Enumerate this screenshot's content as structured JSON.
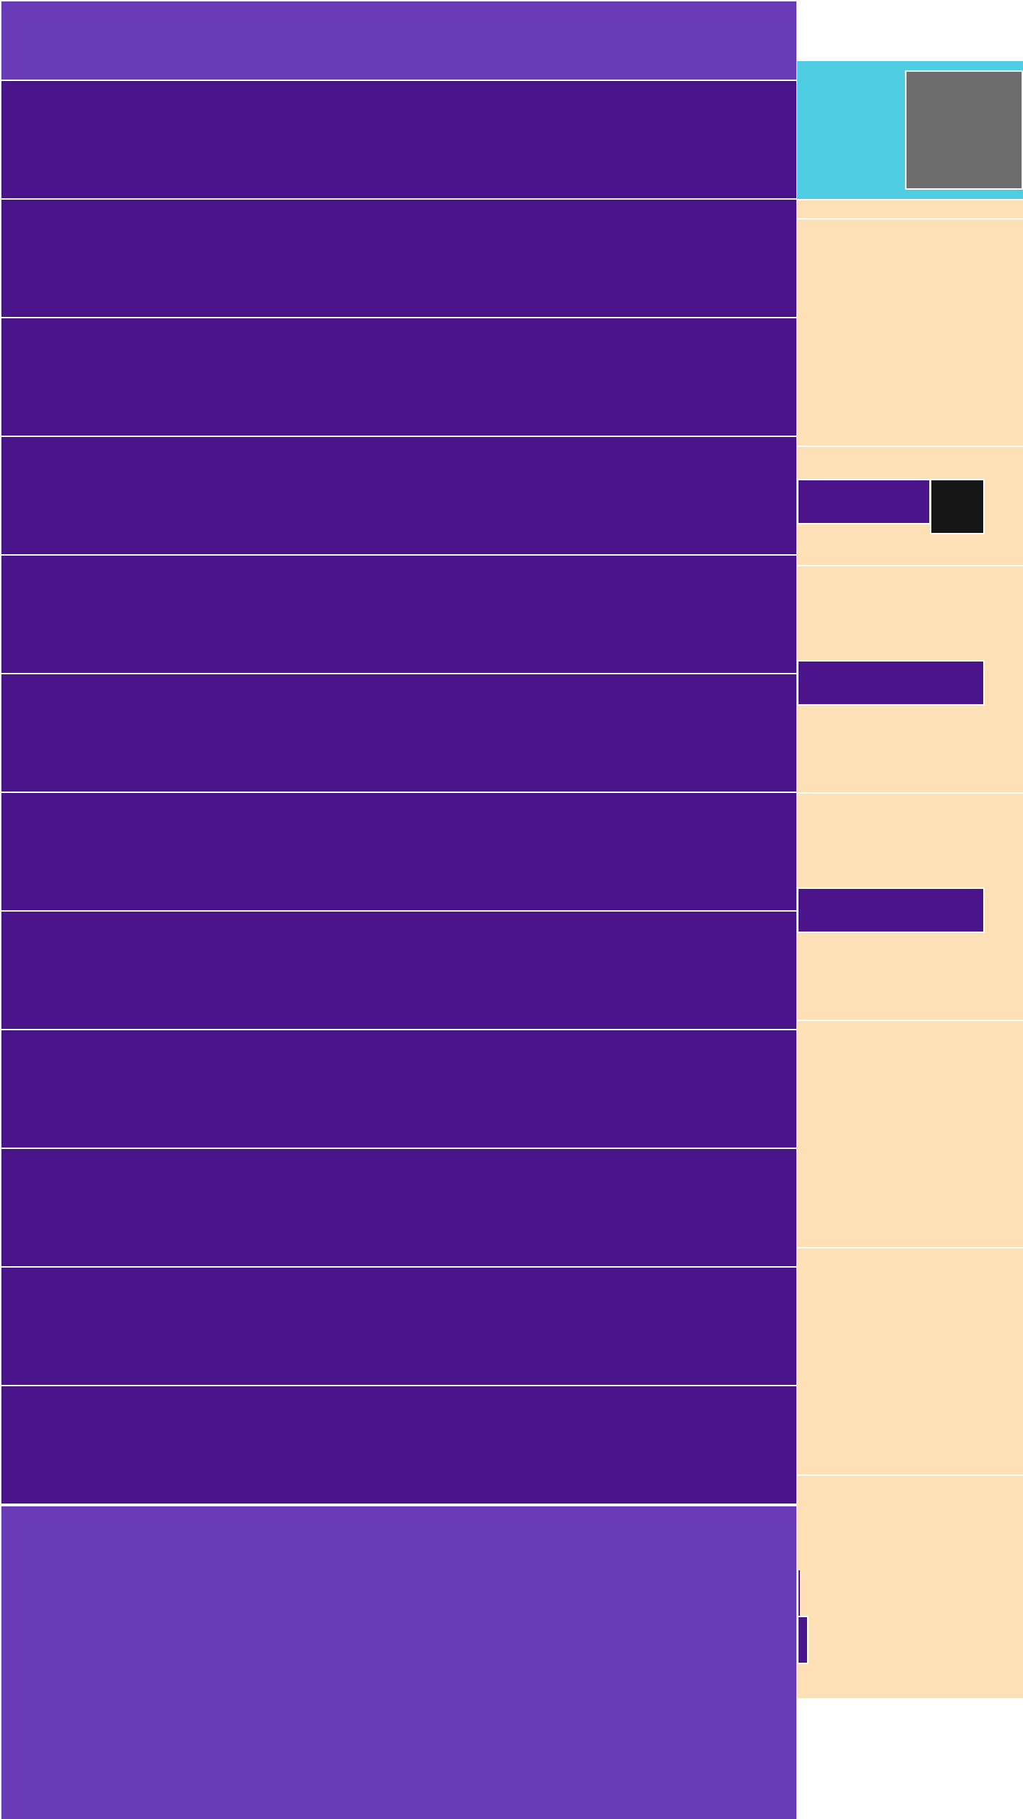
{
  "theme": {
    "topbar_color": "#693bb6",
    "row_color": "#4a148a",
    "header_color": "#4ecee0",
    "panel_color": "#fde0b6",
    "thumbnail_color": "#6d6d6d",
    "dark_button_color": "#161616",
    "separator_color": "#ffffff"
  },
  "list": {
    "row_count": 12
  }
}
